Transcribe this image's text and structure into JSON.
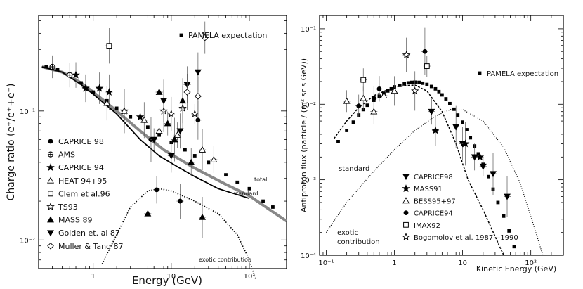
{
  "chart_data": [
    {
      "type": "scatter",
      "panel": "left",
      "ylabel": "Charge ratio (e⁺/e⁺+e⁻)",
      "xlabel": "Energy (GeV)",
      "xscale": "log",
      "yscale": "log",
      "xlim": [
        0.2,
        300
      ],
      "ylim": [
        0.006,
        0.55
      ],
      "x_ticks": [
        {
          "v": 1,
          "label": "1"
        },
        {
          "v": 10,
          "label": "10"
        },
        {
          "v": 100,
          "label": "10²"
        }
      ],
      "y_ticks": [
        {
          "v": 0.01,
          "label": "10⁻²"
        },
        {
          "v": 0.1,
          "label": "10⁻¹"
        }
      ],
      "pamela_label": "PAMELA expectation",
      "curve_labels": {
        "total": "total",
        "standard": "standard",
        "exotic": "exotic contribution"
      },
      "curves": {
        "total": [
          [
            0.22,
            0.22
          ],
          [
            0.4,
            0.2
          ],
          [
            0.7,
            0.165
          ],
          [
            1,
            0.14
          ],
          [
            2,
            0.1
          ],
          [
            4,
            0.07
          ],
          [
            8,
            0.05
          ],
          [
            20,
            0.036
          ],
          [
            50,
            0.027
          ],
          [
            100,
            0.022
          ],
          [
            300,
            0.014
          ]
        ],
        "standard": [
          [
            0.22,
            0.22
          ],
          [
            0.4,
            0.2
          ],
          [
            0.7,
            0.16
          ],
          [
            1,
            0.135
          ],
          [
            2,
            0.095
          ],
          [
            4,
            0.06
          ],
          [
            7,
            0.045
          ],
          [
            12,
            0.037
          ],
          [
            20,
            0.031
          ],
          [
            40,
            0.025
          ],
          [
            100,
            0.021
          ]
        ],
        "exotic": [
          [
            1.3,
            0.0065
          ],
          [
            2,
            0.011
          ],
          [
            3,
            0.018
          ],
          [
            5,
            0.024
          ],
          [
            7,
            0.025
          ],
          [
            10,
            0.024
          ],
          [
            20,
            0.02
          ],
          [
            40,
            0.016
          ],
          [
            70,
            0.011
          ],
          [
            100,
            0.007
          ],
          [
            120,
            0.005
          ]
        ]
      },
      "legend": [
        {
          "marker": "circle",
          "label": "CAPRICE 98"
        },
        {
          "marker": "cross-circle",
          "label": "AMS"
        },
        {
          "marker": "star",
          "label": "CAPRICE 94"
        },
        {
          "marker": "triangle-open",
          "label": "HEAT 94+95"
        },
        {
          "marker": "square-open",
          "label": "Clem et al.96"
        },
        {
          "marker": "star-open",
          "label": "TS93"
        },
        {
          "marker": "triangle",
          "label": "MASS 89"
        },
        {
          "marker": "triangle-down",
          "label": "Golden et. al 87"
        },
        {
          "marker": "diamond-open",
          "label": "Muller & Tang 87"
        }
      ],
      "series": [
        {
          "name": "PAMELA expectation",
          "marker": "square-small",
          "points": [
            [
              0.25,
              0.22
            ],
            [
              0.35,
              0.21
            ],
            [
              0.5,
              0.19
            ],
            [
              0.7,
              0.165
            ],
            [
              1,
              0.14
            ],
            [
              1.5,
              0.12
            ],
            [
              2,
              0.105
            ],
            [
              3,
              0.09
            ],
            [
              5,
              0.075
            ],
            [
              7,
              0.065
            ],
            [
              10,
              0.057
            ],
            [
              15,
              0.05
            ],
            [
              20,
              0.045
            ],
            [
              30,
              0.04
            ],
            [
              50,
              0.032
            ],
            [
              70,
              0.028
            ],
            [
              100,
              0.025
            ],
            [
              150,
              0.02
            ],
            [
              200,
              0.018
            ]
          ]
        },
        {
          "name": "CAPRICE 98",
          "marker": "circle",
          "points": [
            [
              5.5,
              0.06
            ],
            [
              6.5,
              0.0245
            ],
            [
              13,
              0.02
            ],
            [
              22,
              0.085
            ]
          ]
        },
        {
          "name": "AMS",
          "marker": "cross-circle",
          "points": [
            [
              0.3,
              0.22
            ],
            [
              0.5,
              0.19
            ]
          ]
        },
        {
          "name": "CAPRICE 94",
          "marker": "star",
          "points": [
            [
              0.6,
              0.19
            ],
            [
              0.8,
              0.15
            ],
            [
              1.2,
              0.15
            ],
            [
              1.6,
              0.14
            ],
            [
              2.5,
              0.1
            ],
            [
              4,
              0.09
            ]
          ]
        },
        {
          "name": "HEAT 94+95",
          "marker": "triangle-open",
          "points": [
            [
              1.5,
              0.115
            ],
            [
              2.5,
              0.1
            ],
            [
              4.5,
              0.085
            ],
            [
              7,
              0.07
            ],
            [
              12,
              0.065
            ],
            [
              25,
              0.05
            ],
            [
              35,
              0.042
            ]
          ]
        },
        {
          "name": "Clem et al.96",
          "marker": "square-open",
          "points": [
            [
              1.6,
              0.32
            ]
          ]
        },
        {
          "name": "TS93",
          "marker": "star-open",
          "points": [
            [
              8,
              0.1
            ],
            [
              10,
              0.095
            ],
            [
              14,
              0.105
            ],
            [
              20,
              0.095
            ]
          ]
        },
        {
          "name": "MASS 89",
          "marker": "triangle",
          "points": [
            [
              5,
              0.016
            ],
            [
              7,
              0.14
            ],
            [
              9,
              0.08
            ],
            [
              11,
              0.06
            ],
            [
              14,
              0.12
            ],
            [
              18,
              0.04
            ],
            [
              25,
              0.015
            ]
          ]
        },
        {
          "name": "Golden et. al 87",
          "marker": "triangle-down",
          "points": [
            [
              6,
              0.06
            ],
            [
              8,
              0.12
            ],
            [
              10,
              0.045
            ],
            [
              13,
              0.07
            ],
            [
              16,
              0.16
            ],
            [
              22,
              0.2
            ]
          ]
        },
        {
          "name": "Muller & Tang 87",
          "marker": "diamond-open",
          "points": [
            [
              16,
              0.14
            ],
            [
              22,
              0.13
            ],
            [
              27,
              0.37
            ]
          ]
        }
      ]
    },
    {
      "type": "scatter",
      "panel": "right",
      "ylabel": "Antiproton flux (particle / (m² sr s GeV))",
      "xlabel": "Kinetic Energy (GeV)",
      "xscale": "log",
      "yscale": "log",
      "xlim": [
        0.08,
        300
      ],
      "ylim": [
        0.0001,
        0.15
      ],
      "x_ticks": [
        {
          "v": 0.1,
          "label": "10⁻¹"
        },
        {
          "v": 1,
          "label": "1"
        },
        {
          "v": 10,
          "label": "10"
        },
        {
          "v": 100,
          "label": "10²"
        }
      ],
      "y_ticks": [
        {
          "v": 0.0001,
          "label": "10⁻⁴"
        },
        {
          "v": 0.001,
          "label": "10⁻³"
        },
        {
          "v": 0.01,
          "label": "10⁻²"
        },
        {
          "v": 0.1,
          "label": "10⁻¹"
        }
      ],
      "pamela_label": "PAMELA expectation",
      "curve_labels": {
        "standard": "standard",
        "exotic1": "exotic",
        "exotic2": "contribution"
      },
      "curves": {
        "standard": [
          [
            0.13,
            0.0035
          ],
          [
            0.2,
            0.006
          ],
          [
            0.3,
            0.009
          ],
          [
            0.5,
            0.013
          ],
          [
            1,
            0.017
          ],
          [
            2,
            0.018
          ],
          [
            3,
            0.015
          ],
          [
            5,
            0.008
          ],
          [
            8,
            0.003
          ],
          [
            12,
            0.001
          ],
          [
            20,
            0.0004
          ],
          [
            40,
            0.0001
          ]
        ],
        "exotic": [
          [
            0.1,
            0.0002
          ],
          [
            0.2,
            0.0005
          ],
          [
            0.5,
            0.0013
          ],
          [
            1,
            0.0025
          ],
          [
            2,
            0.0045
          ],
          [
            4,
            0.007
          ],
          [
            7,
            0.0087
          ],
          [
            10,
            0.0085
          ],
          [
            20,
            0.006
          ],
          [
            40,
            0.0027
          ],
          [
            70,
            0.0009
          ],
          [
            110,
            0.00025
          ],
          [
            150,
            0.0001
          ]
        ]
      },
      "legend": [
        {
          "marker": "triangle-down",
          "label": "CAPRICE98"
        },
        {
          "marker": "star",
          "label": "MASS91"
        },
        {
          "marker": "triangle-open",
          "label": "BESS95+97"
        },
        {
          "marker": "circle",
          "label": "CAPRICE94"
        },
        {
          "marker": "square-open",
          "label": "IMAX92"
        },
        {
          "marker": "star-open",
          "label": "Bogomolov et al. 1987—1990"
        }
      ],
      "series": [
        {
          "name": "PAMELA expectation",
          "marker": "square-small",
          "points": [
            [
              0.15,
              0.0032
            ],
            [
              0.2,
              0.0045
            ],
            [
              0.25,
              0.0058
            ],
            [
              0.3,
              0.0072
            ],
            [
              0.35,
              0.0085
            ],
            [
              0.4,
              0.0097
            ],
            [
              0.5,
              0.0113
            ],
            [
              0.6,
              0.0128
            ],
            [
              0.7,
              0.014
            ],
            [
              0.8,
              0.015
            ],
            [
              0.9,
              0.016
            ],
            [
              1,
              0.017
            ],
            [
              1.2,
              0.0178
            ],
            [
              1.4,
              0.0186
            ],
            [
              1.6,
              0.0192
            ],
            [
              1.8,
              0.0195
            ],
            [
              2,
              0.0196
            ],
            [
              2.3,
              0.0195
            ],
            [
              2.6,
              0.019
            ],
            [
              3,
              0.0183
            ],
            [
              3.5,
              0.0172
            ],
            [
              4,
              0.016
            ],
            [
              4.5,
              0.0147
            ],
            [
              5,
              0.0133
            ],
            [
              5.7,
              0.0118
            ],
            [
              6.5,
              0.0102
            ],
            [
              7.5,
              0.0086
            ],
            [
              8.5,
              0.0072
            ],
            [
              10,
              0.0058
            ],
            [
              11.5,
              0.0046
            ],
            [
              13,
              0.0036
            ],
            [
              15,
              0.0028
            ],
            [
              17,
              0.0022
            ],
            [
              20,
              0.0016
            ],
            [
              24,
              0.0011
            ],
            [
              28,
              0.00075
            ],
            [
              33,
              0.0005
            ],
            [
              40,
              0.00033
            ],
            [
              48,
              0.00021
            ],
            [
              57,
              0.00013
            ]
          ]
        },
        {
          "name": "CAPRICE98",
          "marker": "triangle-down",
          "points": [
            [
              3.5,
              0.008
            ],
            [
              8,
              0.005
            ],
            [
              10,
              0.003
            ],
            [
              15,
              0.002
            ],
            [
              20,
              0.0015
            ],
            [
              28,
              0.0012
            ],
            [
              45,
              0.0006
            ]
          ]
        },
        {
          "name": "MASS91",
          "marker": "star",
          "points": [
            [
              4,
              0.0045
            ],
            [
              11,
              0.003
            ],
            [
              18,
              0.002
            ]
          ]
        },
        {
          "name": "BESS95+97",
          "marker": "triangle-open",
          "points": [
            [
              0.2,
              0.011
            ],
            [
              0.35,
              0.012
            ],
            [
              0.5,
              0.008
            ],
            [
              0.7,
              0.013
            ],
            [
              1,
              0.015
            ]
          ]
        },
        {
          "name": "CAPRICE94",
          "marker": "circle",
          "points": [
            [
              0.3,
              0.0095
            ],
            [
              0.5,
              0.012
            ],
            [
              2.8,
              0.05
            ],
            [
              0.6,
              0.016
            ]
          ]
        },
        {
          "name": "IMAX92",
          "marker": "square-open",
          "points": [
            [
              0.35,
              0.021
            ],
            [
              3,
              0.032
            ]
          ]
        },
        {
          "name": "Bogomolov et al. 1987—1990",
          "marker": "star-open",
          "points": [
            [
              1.5,
              0.045
            ],
            [
              2,
              0.015
            ]
          ]
        }
      ]
    }
  ]
}
